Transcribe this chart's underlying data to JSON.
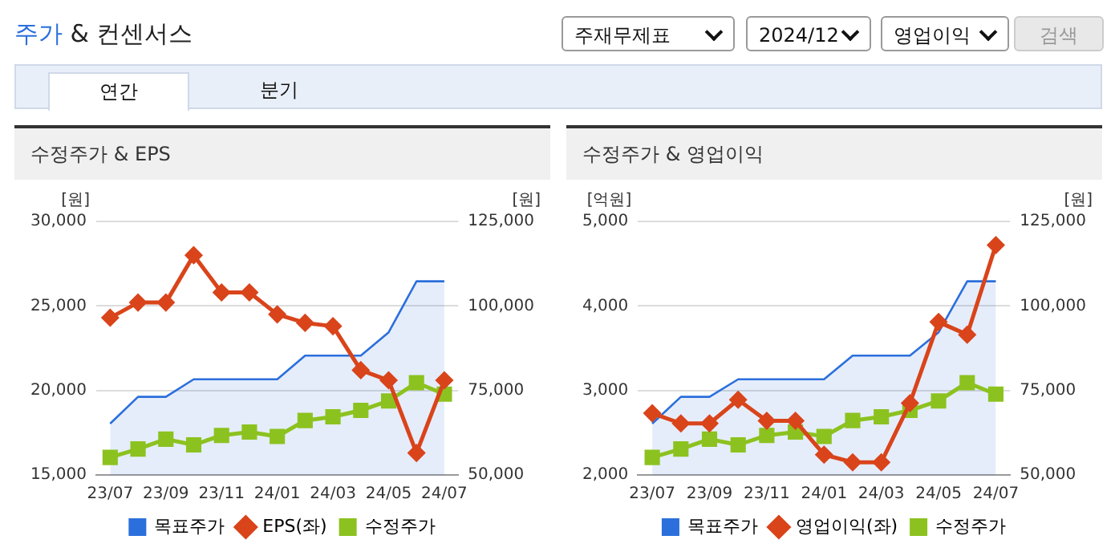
{
  "chart_data": [
    {
      "type": "other",
      "title": "주가 & 컨센서스",
      "annotations": [
        "주재무제표",
        "2024/12",
        "영업이익",
        "검색",
        "연간",
        "분기"
      ]
    },
    {
      "type": "line",
      "title": "수정주가 & EPS",
      "ylabel": "[원]",
      "y2label": "[원]",
      "categories": [
        "23/07",
        null,
        "23/09",
        null,
        "23/11",
        null,
        "24/01",
        null,
        "24/03",
        null,
        "24/05",
        null,
        "24/07"
      ],
      "series": [
        {
          "name": "목표주가",
          "type": "area",
          "axis": "y2",
          "color": "#2b6fdc",
          "marker": "none",
          "values": [
            65200,
            73100,
            73100,
            78300,
            78300,
            78300,
            78300,
            85300,
            85300,
            85300,
            92200,
            107300,
            107300
          ]
        },
        {
          "name": "EPS(좌)",
          "type": "line",
          "axis": "y",
          "color": "#d9441b",
          "marker": "diamond",
          "values": [
            24300,
            25200,
            25200,
            28000,
            25800,
            25800,
            24500,
            24000,
            23800,
            21200,
            20600,
            16300,
            20600
          ]
        },
        {
          "name": "수정주가",
          "type": "line",
          "axis": "y2",
          "color": "#8cc21f",
          "marker": "square",
          "values": [
            55200,
            57700,
            60600,
            58900,
            61700,
            62700,
            61400,
            66100,
            67200,
            69100,
            71900,
            77300,
            73900
          ]
        }
      ],
      "ylim": [
        15000,
        30000
      ],
      "yticks": [
        {
          "value": 15000,
          "label": "15,000"
        },
        {
          "value": 20000,
          "label": "20,000"
        },
        {
          "value": 25000,
          "label": "25,000"
        },
        {
          "value": 30000,
          "label": "30,000"
        }
      ],
      "y2lim": [
        50000,
        125000
      ],
      "y2ticks": [
        {
          "value": 50000,
          "label": "50,000"
        },
        {
          "value": 75000,
          "label": "75,000"
        },
        {
          "value": 100000,
          "label": "100,000"
        },
        {
          "value": 125000,
          "label": "125,000"
        }
      ],
      "grid": "y",
      "legend": "bottom"
    },
    {
      "type": "line",
      "title": "수정주가 & 영업이익",
      "ylabel": "[억원]",
      "y2label": "[원]",
      "categories": [
        "23/07",
        null,
        "23/09",
        null,
        "23/11",
        null,
        "24/01",
        null,
        "24/03",
        null,
        "24/05",
        null,
        "24/07"
      ],
      "series": [
        {
          "name": "목표주가",
          "type": "area",
          "axis": "y2",
          "color": "#2b6fdc",
          "marker": "none",
          "values": [
            65200,
            73100,
            73100,
            78300,
            78300,
            78300,
            78300,
            85300,
            85300,
            85300,
            92200,
            107300,
            107300
          ]
        },
        {
          "name": "영업이익(좌)",
          "type": "line",
          "axis": "y",
          "color": "#d9441b",
          "marker": "diamond",
          "values": [
            2730,
            2610,
            2610,
            2890,
            2640,
            2640,
            2240,
            2150,
            2150,
            2850,
            3810,
            3660,
            4720
          ]
        },
        {
          "name": "수정주가",
          "type": "line",
          "axis": "y2",
          "color": "#8cc21f",
          "marker": "square",
          "values": [
            55200,
            57700,
            60600,
            58900,
            61700,
            62700,
            61400,
            66100,
            67200,
            69100,
            71900,
            77300,
            73900
          ]
        }
      ],
      "ylim": [
        2000,
        5000
      ],
      "yticks": [
        {
          "value": 2000,
          "label": "2,000"
        },
        {
          "value": 3000,
          "label": "3,000"
        },
        {
          "value": 4000,
          "label": "4,000"
        },
        {
          "value": 5000,
          "label": "5,000"
        }
      ],
      "y2lim": [
        50000,
        125000
      ],
      "y2ticks": [
        {
          "value": 50000,
          "label": "50,000"
        },
        {
          "value": 75000,
          "label": "75,000"
        },
        {
          "value": 100000,
          "label": "100,000"
        },
        {
          "value": 125000,
          "label": "125,000"
        }
      ],
      "grid": "y",
      "legend": "bottom"
    }
  ]
}
